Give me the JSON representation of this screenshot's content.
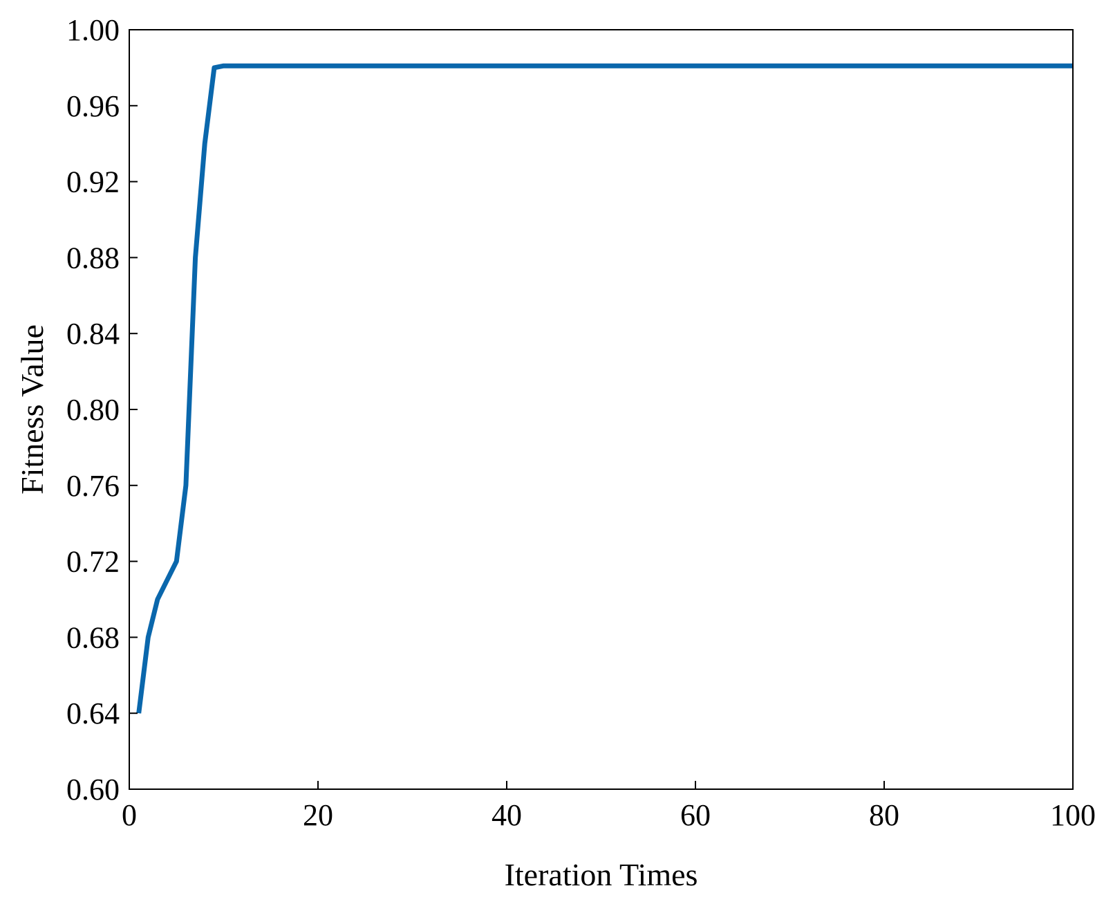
{
  "chart_data": {
    "type": "line",
    "title": "",
    "xlabel": "Iteration Times",
    "ylabel": "Fitness Value",
    "xlim": [
      0,
      100
    ],
    "ylim": [
      0.6,
      1.0
    ],
    "xticks": [
      0,
      20,
      40,
      60,
      80,
      100
    ],
    "xtick_labels": [
      "0",
      "20",
      "40",
      "60",
      "80",
      "100"
    ],
    "yticks": [
      0.6,
      0.64,
      0.68,
      0.72,
      0.76,
      0.8,
      0.84,
      0.88,
      0.92,
      0.96,
      1.0
    ],
    "ytick_labels": [
      "0.60",
      "0.64",
      "0.68",
      "0.72",
      "0.76",
      "0.80",
      "0.84",
      "0.88",
      "0.92",
      "0.96",
      "1.00"
    ],
    "grid": false,
    "legend": "none",
    "series": [
      {
        "color": "#0a67ac",
        "x": [
          1,
          2,
          3,
          4,
          5,
          6,
          7,
          8,
          9,
          10,
          20,
          30,
          40,
          50,
          60,
          70,
          80,
          90,
          100
        ],
        "y": [
          0.64,
          0.68,
          0.7,
          0.71,
          0.72,
          0.76,
          0.88,
          0.94,
          0.98,
          0.981,
          0.981,
          0.981,
          0.981,
          0.981,
          0.981,
          0.981,
          0.981,
          0.981,
          0.981
        ]
      }
    ]
  }
}
